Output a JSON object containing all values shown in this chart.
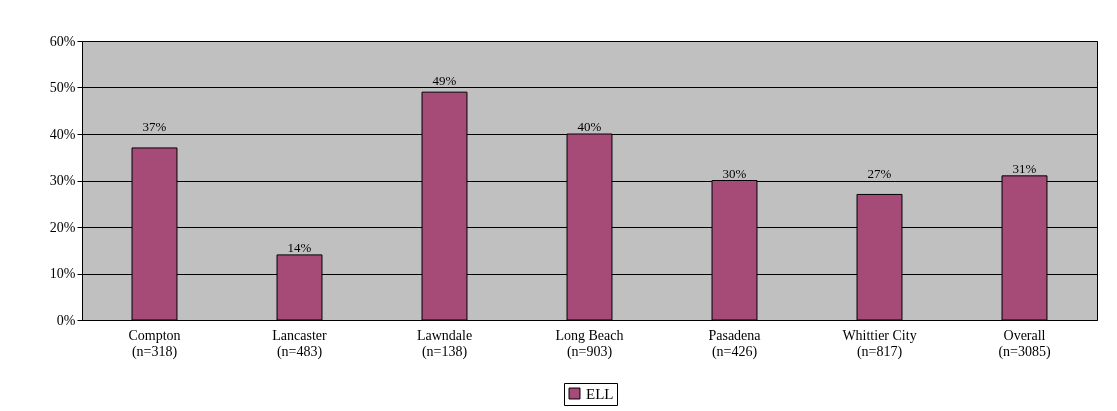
{
  "chart_data": {
    "type": "bar",
    "categories": [
      "Compton\n(n=318)",
      "Lancaster\n(n=483)",
      "Lawndale\n(n=138)",
      "Long Beach\n(n=903)",
      "Pasadena\n(n=426)",
      "Whittier City\n(n=817)",
      "Overall\n(n=3085)"
    ],
    "series": [
      {
        "name": "ELL",
        "color": "#a64a78",
        "values": [
          37,
          14,
          49,
          40,
          30,
          27,
          31
        ],
        "value_labels": [
          "37%",
          "14%",
          "49%",
          "40%",
          "30%",
          "27%",
          "31%"
        ]
      }
    ],
    "ylim": [
      0,
      60
    ],
    "yticks": [
      {
        "value": 0,
        "label": "0%"
      },
      {
        "value": 10,
        "label": "10%"
      },
      {
        "value": 20,
        "label": "20%"
      },
      {
        "value": 30,
        "label": "30%"
      },
      {
        "value": 40,
        "label": "40%"
      },
      {
        "value": 50,
        "label": "50%"
      },
      {
        "value": 60,
        "label": "60%"
      }
    ],
    "grid": "y",
    "legend": "bottom"
  }
}
